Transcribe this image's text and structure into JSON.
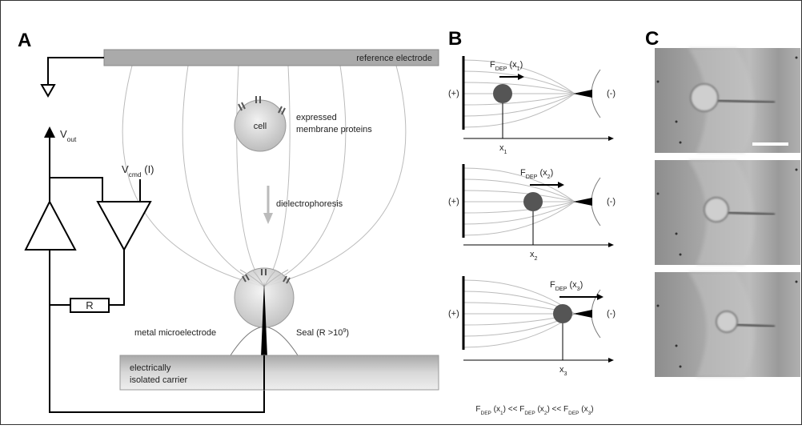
{
  "panel_a": {
    "label": "A",
    "reference_electrode": "reference electrode",
    "v_out": [
      {
        "t": "V"
      },
      {
        "sub": "out"
      }
    ],
    "v_cmd": [
      {
        "t": "V"
      },
      {
        "sub": "cmd"
      },
      {
        "t": " (I)"
      }
    ],
    "resistor": "R",
    "cell": "cell",
    "proteins": [
      "expressed",
      "membrane proteins"
    ],
    "process": "dielectrophoresis",
    "microelectrode": "metal microelectrode",
    "seal": [
      {
        "t": "Seal (R >10"
      },
      {
        "sup": "9"
      },
      {
        "t": ")"
      }
    ],
    "carrier": [
      "electrically",
      "isolated carrier"
    ]
  },
  "panel_b": {
    "label": "B",
    "plots": [
      {
        "force": [
          {
            "t": "F"
          },
          {
            "sub": "DEP"
          },
          {
            "t": " (x"
          },
          {
            "sub": "1"
          },
          {
            "t": ")"
          }
        ],
        "plus": "(+)",
        "minus": "(-)",
        "x": [
          {
            "t": "x"
          },
          {
            "sub": "1"
          }
        ]
      },
      {
        "force": [
          {
            "t": "F"
          },
          {
            "sub": "DEP"
          },
          {
            "t": " (x"
          },
          {
            "sub": "2"
          },
          {
            "t": ")"
          }
        ],
        "plus": "(+)",
        "minus": "(-)",
        "x": [
          {
            "t": "x"
          },
          {
            "sub": "2"
          }
        ]
      },
      {
        "force": [
          {
            "t": "F"
          },
          {
            "sub": "DEP"
          },
          {
            "t": " (x"
          },
          {
            "sub": "3"
          },
          {
            "t": ")"
          }
        ],
        "plus": "(+)",
        "minus": "(-)",
        "x": [
          {
            "t": "x"
          },
          {
            "sub": "3"
          }
        ]
      }
    ],
    "relation": [
      {
        "t": "F"
      },
      {
        "sub": "DEP"
      },
      {
        "t": " (x"
      },
      {
        "sub": "1"
      },
      {
        "t": ") << F"
      },
      {
        "sub": "DEP"
      },
      {
        "t": " (x"
      },
      {
        "sub": "2"
      },
      {
        "t": ") << F"
      },
      {
        "sub": "DEP"
      },
      {
        "t": " (x"
      },
      {
        "sub": "3"
      },
      {
        "t": ")"
      }
    ]
  },
  "panel_c": {
    "label": "C"
  }
}
